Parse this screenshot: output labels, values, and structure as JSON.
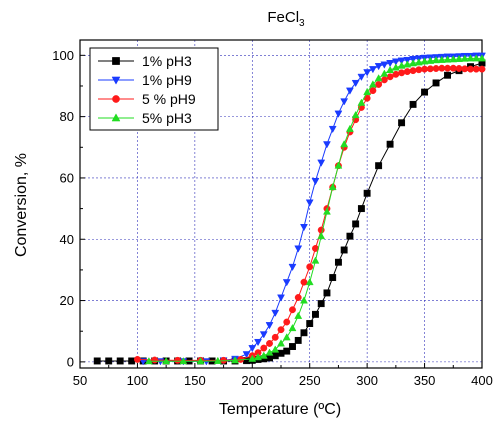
{
  "chart_data": {
    "type": "scatter",
    "title": "FeCl",
    "title_subscript": "3",
    "xlabel": "Temperature (ºC)",
    "ylabel": "Conversion, %",
    "xlim": [
      50,
      400
    ],
    "ylim": [
      -2,
      105
    ],
    "xticks": [
      50,
      100,
      150,
      200,
      250,
      300,
      350,
      400
    ],
    "yticks": [
      0,
      20,
      40,
      60,
      80,
      100
    ],
    "grid": true,
    "legend_position": "top-left",
    "series": [
      {
        "name": "1% pH3",
        "color": "#000000",
        "marker": "square",
        "x": [
          65,
          75,
          85,
          95,
          105,
          115,
          125,
          135,
          145,
          155,
          165,
          175,
          185,
          195,
          200,
          205,
          210,
          215,
          220,
          225,
          230,
          235,
          240,
          245,
          250,
          255,
          260,
          265,
          270,
          275,
          280,
          285,
          290,
          295,
          300,
          310,
          320,
          330,
          340,
          350,
          360,
          370,
          380,
          390,
          400
        ],
        "y": [
          0.3,
          0.3,
          0.3,
          0.3,
          0.3,
          0.3,
          0.3,
          0.3,
          0.3,
          0.3,
          0.3,
          0.3,
          0.3,
          0.4,
          0.5,
          0.8,
          1.0,
          1.3,
          2.0,
          2.8,
          3.5,
          5.0,
          7.0,
          9.5,
          12.5,
          15.5,
          19.0,
          22.5,
          27.5,
          32.5,
          36.5,
          41.0,
          45.0,
          50.0,
          55.0,
          64.0,
          71.0,
          78.0,
          84.0,
          88.0,
          91.0,
          93.5,
          95.0,
          96.3,
          97.5
        ]
      },
      {
        "name": "1% pH9",
        "color": "#1a3bff",
        "marker": "triangle-down",
        "x": [
          105,
          120,
          140,
          160,
          175,
          185,
          195,
          200,
          205,
          210,
          215,
          220,
          225,
          230,
          235,
          240,
          245,
          250,
          255,
          260,
          265,
          270,
          275,
          280,
          285,
          290,
          295,
          300,
          305,
          310,
          315,
          320,
          325,
          330,
          335,
          340,
          345,
          350,
          355,
          360,
          365,
          370,
          375,
          380,
          385,
          390,
          395,
          400
        ],
        "y": [
          0.2,
          0.2,
          0.2,
          0.2,
          0.5,
          1.0,
          2.5,
          4.5,
          6.5,
          9.0,
          12.0,
          16.0,
          21.0,
          26.0,
          31.0,
          37.0,
          44.0,
          52.0,
          59.0,
          65.0,
          71.0,
          76.0,
          81.0,
          85.0,
          88.5,
          91.0,
          93.0,
          94.5,
          95.5,
          96.5,
          97.0,
          97.5,
          98.0,
          98.3,
          98.5,
          98.8,
          99.0,
          99.2,
          99.3,
          99.4,
          99.5,
          99.6,
          99.6,
          99.7,
          99.8,
          99.8,
          99.9,
          99.9
        ]
      },
      {
        "name": "5 % pH9",
        "color": "#ff1a1a",
        "marker": "circle",
        "x": [
          100,
          115,
          135,
          155,
          175,
          190,
          200,
          205,
          210,
          215,
          220,
          225,
          230,
          235,
          240,
          245,
          250,
          255,
          260,
          265,
          270,
          275,
          280,
          285,
          290,
          295,
          300,
          305,
          310,
          315,
          320,
          325,
          330,
          335,
          340,
          345,
          350,
          355,
          360,
          365,
          370,
          375,
          380,
          385,
          390,
          395,
          400
        ],
        "y": [
          0.8,
          0.6,
          0.5,
          0.5,
          0.5,
          0.8,
          2.0,
          3.0,
          4.5,
          6.0,
          8.0,
          10.5,
          13.0,
          17.0,
          21.0,
          26.0,
          31.0,
          37.0,
          43.0,
          50.0,
          57.0,
          64.0,
          70.0,
          75.0,
          79.0,
          83.0,
          86.0,
          88.5,
          90.5,
          92.0,
          93.0,
          93.8,
          94.3,
          94.7,
          95.0,
          95.3,
          95.5,
          95.6,
          95.7,
          95.8,
          95.8,
          95.8,
          95.7,
          95.6,
          95.5,
          95.5,
          95.5
        ]
      },
      {
        "name": "5% pH3",
        "color": "#22dd22",
        "marker": "triangle-up",
        "x": [
          110,
          125,
          140,
          155,
          170,
          185,
          200,
          205,
          210,
          215,
          220,
          225,
          230,
          235,
          240,
          245,
          250,
          255,
          260,
          265,
          270,
          275,
          280,
          285,
          290,
          295,
          300,
          305,
          310,
          315,
          320,
          325,
          330,
          335,
          340,
          345,
          350,
          355,
          360,
          365,
          370,
          375,
          380,
          385,
          390,
          395,
          400
        ],
        "y": [
          0.2,
          0.2,
          0.2,
          0.2,
          0.3,
          0.5,
          1.0,
          1.5,
          2.0,
          3.0,
          4.0,
          6.0,
          8.0,
          11.0,
          15.0,
          20.0,
          26.0,
          33.0,
          41.0,
          49.0,
          57.0,
          64.0,
          71.0,
          76.0,
          80.5,
          84.5,
          88.0,
          90.5,
          92.5,
          94.0,
          95.2,
          96.0,
          96.6,
          97.0,
          97.4,
          97.7,
          98.0,
          98.2,
          98.4,
          98.5,
          98.6,
          98.7,
          98.8,
          98.9,
          99.0,
          99.0,
          99.0
        ]
      }
    ]
  }
}
